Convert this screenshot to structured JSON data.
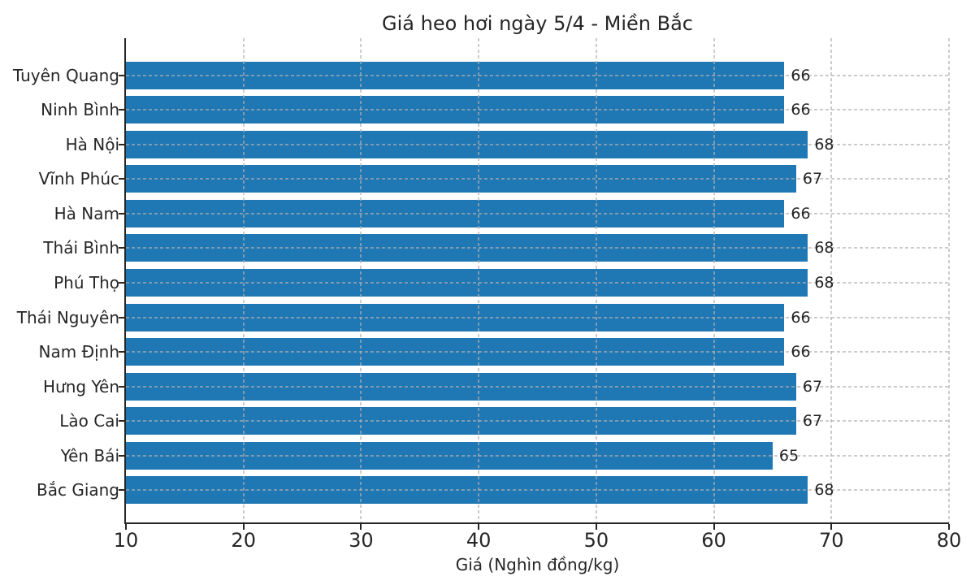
{
  "chart_data": {
    "type": "bar",
    "orientation": "horizontal",
    "title": "Giá heo hơi ngày 5/4 - Miền Bắc",
    "xlabel": "Giá (Nghìn đồng/kg)",
    "ylabel": "",
    "categories": [
      "Tuyên Quang",
      "Ninh Bình",
      "Hà Nội",
      "Vĩnh Phúc",
      "Hà Nam",
      "Thái Bình",
      "Phú Thọ",
      "Thái Nguyên",
      "Nam Định",
      "Hưng Yên",
      "Lào Cai",
      "Yên Bái",
      "Bắc Giang"
    ],
    "values": [
      66,
      66,
      68,
      67,
      66,
      68,
      68,
      66,
      66,
      67,
      67,
      65,
      68
    ],
    "value_labels": [
      "66",
      "66",
      "68",
      "67",
      "66",
      "68",
      "68",
      "66",
      "66",
      "67",
      "67",
      "65",
      "68"
    ],
    "xlim": [
      10,
      80
    ],
    "xticks": [
      10,
      20,
      30,
      40,
      50,
      60,
      70,
      80
    ],
    "grid": true,
    "grid_style": "dashed",
    "legend": "none",
    "colors": {
      "bar": "#1f77b4",
      "text": "#262626",
      "grid": "#b0b0b0",
      "spine": "#262626",
      "background": "#ffffff"
    }
  }
}
